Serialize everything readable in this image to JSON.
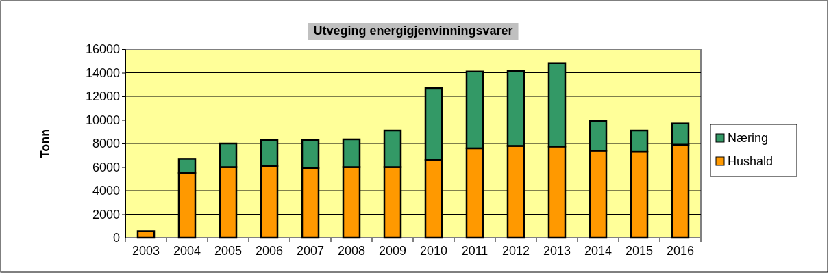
{
  "chart_data": {
    "type": "bar",
    "title": "Utveging energigjenvinningsvarer",
    "ylabel": "Tonn",
    "categories": [
      "2003",
      "2004",
      "2005",
      "2006",
      "2007",
      "2008",
      "2009",
      "2010",
      "2011",
      "2012",
      "2013",
      "2014",
      "2015",
      "2016"
    ],
    "series": [
      {
        "name": "Hushald",
        "color": "#ff9900",
        "values": [
          550,
          5500,
          6000,
          6100,
          5900,
          6000,
          6000,
          6600,
          7600,
          7800,
          7750,
          7400,
          7300,
          7900
        ]
      },
      {
        "name": "Næring",
        "color": "#339966",
        "values": [
          null,
          1200,
          2000,
          2200,
          2400,
          2350,
          3100,
          6100,
          6500,
          6350,
          7050,
          2500,
          1800,
          1800
        ]
      }
    ],
    "stacked": true,
    "ylim": [
      0,
      16000
    ],
    "yticks": [
      0,
      2000,
      4000,
      6000,
      8000,
      10000,
      12000,
      14000,
      16000
    ],
    "grid": "y",
    "legend": "right"
  }
}
